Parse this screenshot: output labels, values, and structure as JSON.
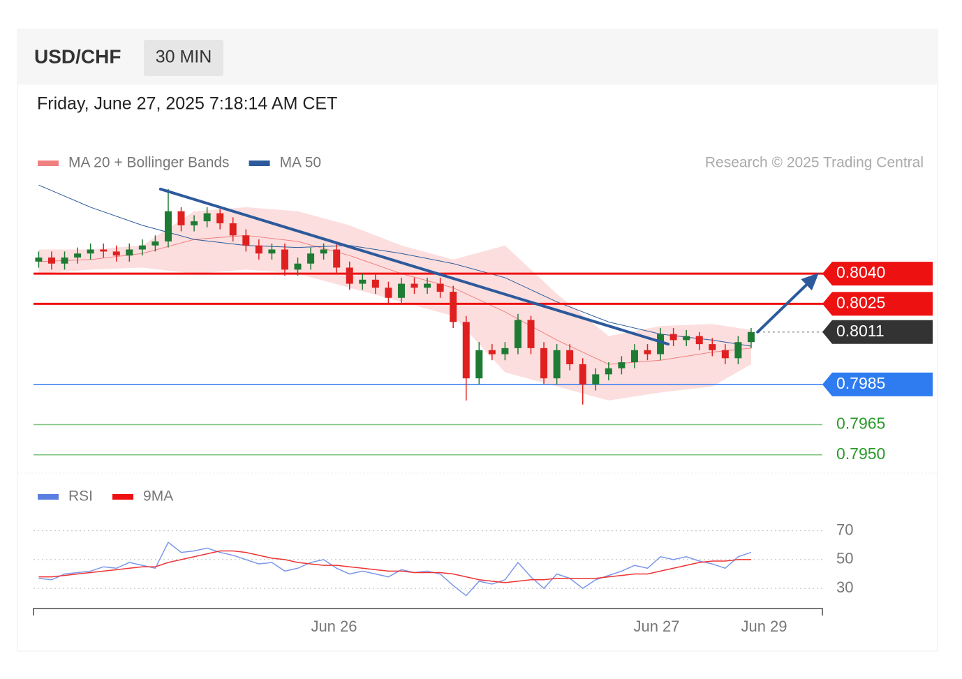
{
  "header": {
    "symbol": "USD/CHF",
    "interval": "30 MIN",
    "datetime": "Friday, June 27, 2025 7:18:14 AM CET"
  },
  "chart_data": [
    {
      "type": "candlestick",
      "legend": [
        {
          "name": "MA 20 + Bollinger Bands",
          "color": "#f08080"
        },
        {
          "name": "MA 50",
          "color": "#2d5a9b"
        }
      ],
      "credit": "Research © 2025 Trading Central",
      "x": [
        0,
        1,
        2,
        3,
        4,
        5,
        6,
        7,
        8,
        9,
        10,
        11,
        12,
        13,
        14,
        15,
        16,
        17,
        18,
        19,
        20,
        21,
        22,
        23,
        24,
        25,
        26,
        27,
        28,
        29,
        30,
        31,
        32,
        33,
        34,
        35,
        36,
        37,
        38,
        39,
        40,
        41,
        42,
        43,
        44,
        45,
        46,
        47,
        48,
        49,
        50,
        51,
        52,
        53,
        54,
        55
      ],
      "open": [
        0.8046,
        0.8048,
        0.8045,
        0.8048,
        0.805,
        0.8052,
        0.8051,
        0.8049,
        0.8052,
        0.8054,
        0.8056,
        0.8071,
        0.8064,
        0.8066,
        0.807,
        0.8065,
        0.8059,
        0.8054,
        0.805,
        0.8052,
        0.8042,
        0.8045,
        0.805,
        0.8052,
        0.8043,
        0.8035,
        0.8037,
        0.8033,
        0.8028,
        0.8035,
        0.8033,
        0.8035,
        0.8031,
        0.8016,
        0.7988,
        0.8002,
        0.8,
        0.8003,
        0.8017,
        0.8003,
        0.7988,
        0.8002,
        0.7995,
        0.7985,
        0.799,
        0.7993,
        0.7996,
        0.8002,
        0.8,
        0.801,
        0.8007,
        0.8009,
        0.8005,
        0.8002,
        0.7998,
        0.8006
      ],
      "high": [
        0.8051,
        0.8051,
        0.8051,
        0.8053,
        0.8055,
        0.8055,
        0.8054,
        0.8055,
        0.8057,
        0.8059,
        0.8082,
        0.8073,
        0.8069,
        0.8073,
        0.8072,
        0.8068,
        0.8062,
        0.8057,
        0.8055,
        0.8055,
        0.8048,
        0.8053,
        0.8055,
        0.8055,
        0.8046,
        0.804,
        0.804,
        0.8036,
        0.8038,
        0.8038,
        0.8038,
        0.8038,
        0.8034,
        0.8019,
        0.8006,
        0.8005,
        0.8006,
        0.802,
        0.8019,
        0.8006,
        0.8005,
        0.8005,
        0.7998,
        0.7993,
        0.7996,
        0.7999,
        0.8005,
        0.8005,
        0.8013,
        0.8013,
        0.8012,
        0.8011,
        0.8008,
        0.8005,
        0.8009,
        0.8013
      ],
      "low": [
        0.8043,
        0.8042,
        0.8042,
        0.8045,
        0.8047,
        0.8048,
        0.8046,
        0.8046,
        0.8049,
        0.8051,
        0.8053,
        0.8061,
        0.8061,
        0.8063,
        0.8062,
        0.8056,
        0.8051,
        0.8047,
        0.8047,
        0.8039,
        0.8039,
        0.8042,
        0.8047,
        0.804,
        0.8032,
        0.8032,
        0.803,
        0.8025,
        0.8025,
        0.803,
        0.803,
        0.8028,
        0.8013,
        0.7977,
        0.7985,
        0.7997,
        0.7997,
        0.8,
        0.8,
        0.7985,
        0.7985,
        0.7992,
        0.7975,
        0.7982,
        0.7987,
        0.799,
        0.7993,
        0.7997,
        0.7997,
        0.8004,
        0.8004,
        0.8002,
        0.7999,
        0.7995,
        0.7995,
        0.8003
      ],
      "close": [
        0.8048,
        0.8045,
        0.8048,
        0.805,
        0.8052,
        0.8051,
        0.8049,
        0.8052,
        0.8054,
        0.8056,
        0.8071,
        0.8064,
        0.8066,
        0.807,
        0.8065,
        0.8059,
        0.8054,
        0.805,
        0.8052,
        0.8042,
        0.8045,
        0.805,
        0.8052,
        0.8043,
        0.8035,
        0.8037,
        0.8033,
        0.8028,
        0.8035,
        0.8033,
        0.8035,
        0.8031,
        0.8016,
        0.7988,
        0.8002,
        0.8,
        0.8003,
        0.8017,
        0.8003,
        0.7988,
        0.8002,
        0.7995,
        0.7985,
        0.799,
        0.7993,
        0.7996,
        0.8002,
        0.8,
        0.801,
        0.8007,
        0.8009,
        0.8005,
        0.8002,
        0.7998,
        0.8006,
        0.8011
      ],
      "up_color": "#1e7b34",
      "down_color": "#e02020",
      "bands": {
        "x": [
          0,
          4,
          8,
          12,
          16,
          20,
          24,
          28,
          32,
          36,
          40,
          44,
          48,
          52,
          55
        ],
        "upper": [
          0.8052,
          0.8052,
          0.8054,
          0.8071,
          0.8073,
          0.8071,
          0.8064,
          0.8054,
          0.8047,
          0.8054,
          0.803,
          0.8009,
          0.8014,
          0.8015,
          0.8012
        ],
        "middle": [
          0.8046,
          0.8047,
          0.805,
          0.8057,
          0.8059,
          0.8056,
          0.8049,
          0.804,
          0.8033,
          0.8021,
          0.8007,
          0.7995,
          0.7997,
          0.8001,
          0.8003
        ],
        "lower": [
          0.804,
          0.8042,
          0.8043,
          0.804,
          0.8042,
          0.804,
          0.8033,
          0.8026,
          0.8019,
          0.7991,
          0.7984,
          0.7977,
          0.7981,
          0.7984,
          0.7995
        ]
      },
      "ma50": {
        "x": [
          0,
          4,
          8,
          12,
          16,
          20,
          24,
          28,
          32,
          36,
          40,
          44,
          48,
          52,
          55
        ],
        "values": [
          0.8084,
          0.8073,
          0.8064,
          0.8057,
          0.8054,
          0.8053,
          0.8054,
          0.805,
          0.8045,
          0.8038,
          0.8026,
          0.8016,
          0.801,
          0.8007,
          0.8004
        ]
      },
      "trendline": {
        "x": [
          9.4,
          48.6
        ],
        "y": [
          0.8082,
          0.8005
        ],
        "color": "#2d5a9b"
      },
      "arrow": {
        "x": [
          55.5,
          60
        ],
        "y": [
          0.8011,
          0.8039
        ],
        "color": "#2d5a9b"
      },
      "levels": [
        {
          "value": 0.804,
          "label": "0.8040",
          "color": "#ee1111",
          "tag": true
        },
        {
          "value": 0.8025,
          "label": "0.8025",
          "color": "#ee1111",
          "tag": true
        },
        {
          "value": 0.8011,
          "label": "0.8011",
          "color": "#333333",
          "tag": true,
          "current": true
        },
        {
          "value": 0.7985,
          "label": "0.7985",
          "color": "#2f7cf0",
          "tag": true
        },
        {
          "value": 0.7965,
          "label": "0.7965",
          "color": "#2a9a2a",
          "tag": false
        },
        {
          "value": 0.795,
          "label": "0.7950",
          "color": "#2a9a2a",
          "tag": false
        }
      ],
      "xlim": [
        -0.4,
        60.5
      ],
      "ylim": [
        0.7943,
        0.8091
      ]
    },
    {
      "type": "line",
      "legend": [
        {
          "name": "RSI",
          "color": "#5b7fe0"
        },
        {
          "name": "9MA",
          "color": "#ee1111"
        }
      ],
      "series": [
        {
          "name": "RSI",
          "color": "#7b97e8",
          "values": [
            37,
            36,
            40,
            41,
            42,
            45,
            44,
            48,
            46,
            44,
            62,
            55,
            56,
            58,
            55,
            53,
            50,
            47,
            48,
            42,
            44,
            48,
            50,
            44,
            40,
            42,
            40,
            38,
            43,
            41,
            42,
            40,
            32,
            25,
            35,
            33,
            36,
            48,
            38,
            30,
            40,
            37,
            30,
            36,
            39,
            42,
            46,
            44,
            52,
            50,
            52,
            49,
            47,
            44,
            52,
            55
          ]
        },
        {
          "name": "9MA",
          "color": "#ee3333",
          "values": [
            38,
            38,
            39,
            40,
            41,
            42,
            43,
            44,
            45,
            45,
            48,
            50,
            52,
            54,
            56,
            56,
            55,
            53,
            51,
            50,
            48,
            47,
            46,
            46,
            45,
            44,
            43,
            42,
            42,
            41,
            41,
            41,
            40,
            38,
            36,
            35,
            34,
            35,
            36,
            36,
            37,
            37,
            37,
            37,
            38,
            39,
            40,
            40,
            42,
            44,
            46,
            48,
            49,
            49,
            50,
            50
          ]
        }
      ],
      "xlim": [
        -0.4,
        60.5
      ],
      "ylim": [
        17,
        80
      ],
      "yticks": [
        30,
        50,
        70
      ],
      "xticks": [
        {
          "value": 22.8,
          "label": "Jun 26"
        },
        {
          "value": 47.7,
          "label": "Jun 27"
        },
        {
          "value": 56,
          "label": "Jun 29"
        }
      ]
    }
  ]
}
